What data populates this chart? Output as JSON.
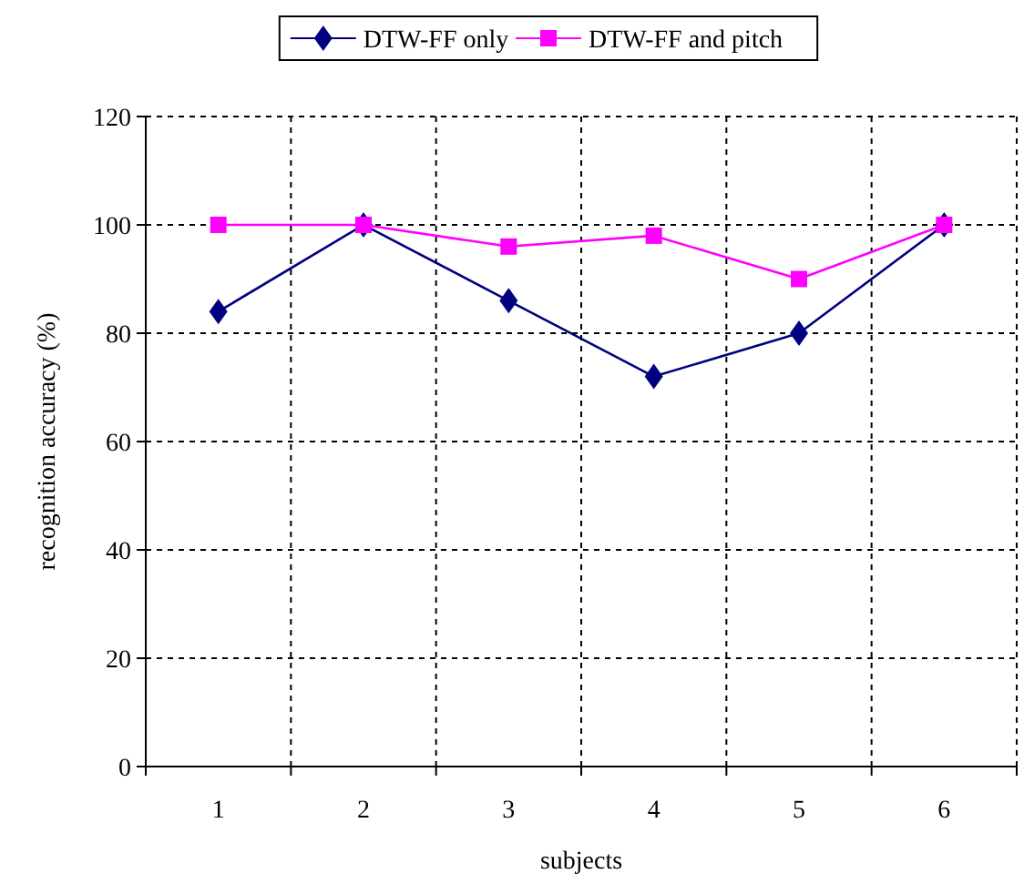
{
  "chart_data": {
    "type": "line",
    "xlabel": "subjects",
    "ylabel": "recognition accuracy (%)",
    "categories": [
      "1",
      "2",
      "3",
      "4",
      "5",
      "6"
    ],
    "series": [
      {
        "name": "DTW-FF only",
        "color": "#000080",
        "values": [
          84,
          100,
          86,
          72,
          80,
          100
        ],
        "marker": "diamond"
      },
      {
        "name": "DTW-FF and pitch",
        "color": "#ff00ff",
        "values": [
          100,
          100,
          96,
          98,
          90,
          100
        ],
        "marker": "square"
      }
    ],
    "ylim": [
      0,
      120
    ],
    "yticks": [
      0,
      20,
      40,
      60,
      80,
      100,
      120
    ],
    "grid": true,
    "legend": "top"
  }
}
